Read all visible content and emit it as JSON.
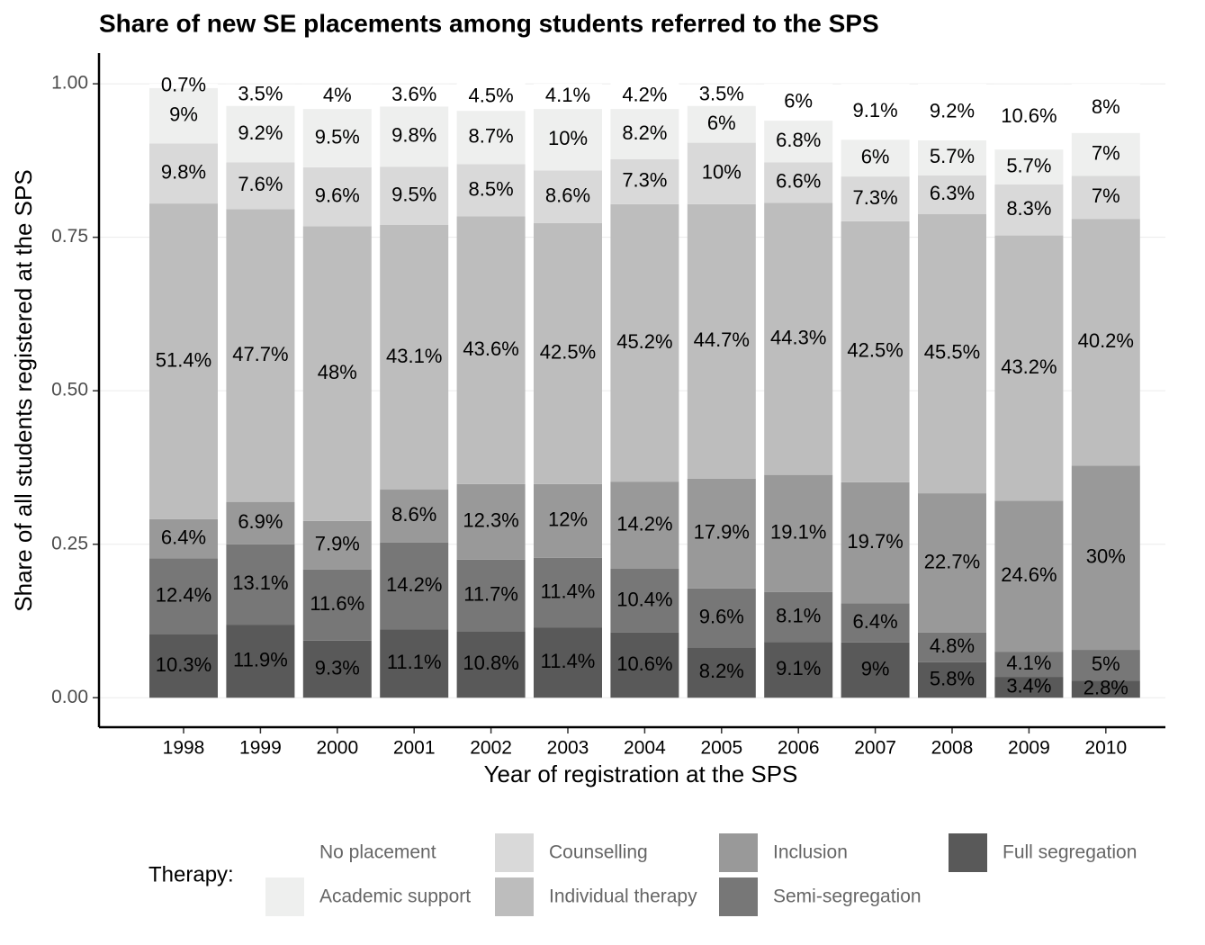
{
  "chart_data": {
    "type": "stacked_bar",
    "title": "Share of new SE placements among students referred to the SPS",
    "x_label": "Year of registration at the SPS",
    "y_label": "Share of all students registered at the SPS",
    "legend_title": "Therapy:",
    "legend_position": "bottom",
    "grid": true,
    "categories": [
      "1998",
      "1999",
      "2000",
      "2001",
      "2002",
      "2003",
      "2004",
      "2005",
      "2006",
      "2007",
      "2008",
      "2009",
      "2010"
    ],
    "ylim": [
      -0.048,
      1.05
    ],
    "yticks": [
      {
        "value": 0,
        "label": "0.00"
      },
      {
        "value": 0.25,
        "label": "0.25"
      },
      {
        "value": 0.5,
        "label": "0.50"
      },
      {
        "value": 0.75,
        "label": "0.75"
      },
      {
        "value": 1,
        "label": "1.00"
      }
    ],
    "series": [
      {
        "name": "Full segregation",
        "color": "#595959",
        "values": [
          0.103,
          0.119,
          0.093,
          0.111,
          0.108,
          0.114,
          0.106,
          0.082,
          0.091,
          0.09,
          0.058,
          0.034,
          0.028
        ],
        "value_labels": [
          "10.3%",
          "11.9%",
          "9.3%",
          "11.1%",
          "10.8%",
          "11.4%",
          "10.6%",
          "8.2%",
          "9.1%",
          "9%",
          "5.8%",
          "3.4%",
          "2.8%"
        ]
      },
      {
        "name": "Semi-segregation",
        "color": "#777777",
        "values": [
          0.124,
          0.131,
          0.116,
          0.142,
          0.117,
          0.114,
          0.104,
          0.096,
          0.081,
          0.064,
          0.048,
          0.041,
          0.05
        ],
        "value_labels": [
          "12.4%",
          "13.1%",
          "11.6%",
          "14.2%",
          "11.7%",
          "11.4%",
          "10.4%",
          "9.6%",
          "8.1%",
          "6.4%",
          "4.8%",
          "4.1%",
          "5%"
        ]
      },
      {
        "name": "Inclusion",
        "color": "#999999",
        "values": [
          0.064,
          0.069,
          0.079,
          0.086,
          0.123,
          0.12,
          0.142,
          0.179,
          0.191,
          0.197,
          0.227,
          0.246,
          0.3
        ],
        "value_labels": [
          "6.4%",
          "6.9%",
          "7.9%",
          "8.6%",
          "12.3%",
          "12%",
          "14.2%",
          "17.9%",
          "19.1%",
          "19.7%",
          "22.7%",
          "24.6%",
          "30%"
        ]
      },
      {
        "name": "Individual therapy",
        "color": "#bdbdbd",
        "values": [
          0.514,
          0.477,
          0.48,
          0.431,
          0.436,
          0.425,
          0.452,
          0.447,
          0.443,
          0.425,
          0.455,
          0.432,
          0.402
        ],
        "value_labels": [
          "51.4%",
          "47.7%",
          "48%",
          "43.1%",
          "43.6%",
          "42.5%",
          "45.2%",
          "44.7%",
          "44.3%",
          "42.5%",
          "45.5%",
          "43.2%",
          "40.2%"
        ]
      },
      {
        "name": "Counselling",
        "color": "#d9d9d9",
        "values": [
          0.098,
          0.076,
          0.096,
          0.095,
          0.085,
          0.086,
          0.073,
          0.1,
          0.066,
          0.073,
          0.063,
          0.083,
          0.07
        ],
        "value_labels": [
          "9.8%",
          "7.6%",
          "9.6%",
          "9.5%",
          "8.5%",
          "8.6%",
          "7.3%",
          "10%",
          "6.6%",
          "7.3%",
          "6.3%",
          "8.3%",
          "7%"
        ]
      },
      {
        "name": "Academic support",
        "color": "#eeefee",
        "values": [
          0.09,
          0.092,
          0.095,
          0.098,
          0.087,
          0.1,
          0.082,
          0.06,
          0.068,
          0.06,
          0.057,
          0.057,
          0.07
        ],
        "value_labels": [
          "9%",
          "9.2%",
          "9.5%",
          "9.8%",
          "8.7%",
          "10%",
          "8.2%",
          "6%",
          "6.8%",
          "6%",
          "5.7%",
          "5.7%",
          "7%"
        ]
      },
      {
        "name": "No placement",
        "color": "#ffffff",
        "values": [
          0.007,
          0.035,
          0.04,
          0.036,
          0.045,
          0.041,
          0.042,
          0.035,
          0.06,
          0.091,
          0.092,
          0.106,
          0.08
        ],
        "value_labels": [
          "0.7%",
          "3.5%",
          "4%",
          "3.6%",
          "4.5%",
          "4.1%",
          "4.2%",
          "3.5%",
          "6%",
          "9.1%",
          "9.2%",
          "10.6%",
          "8%"
        ]
      }
    ]
  }
}
